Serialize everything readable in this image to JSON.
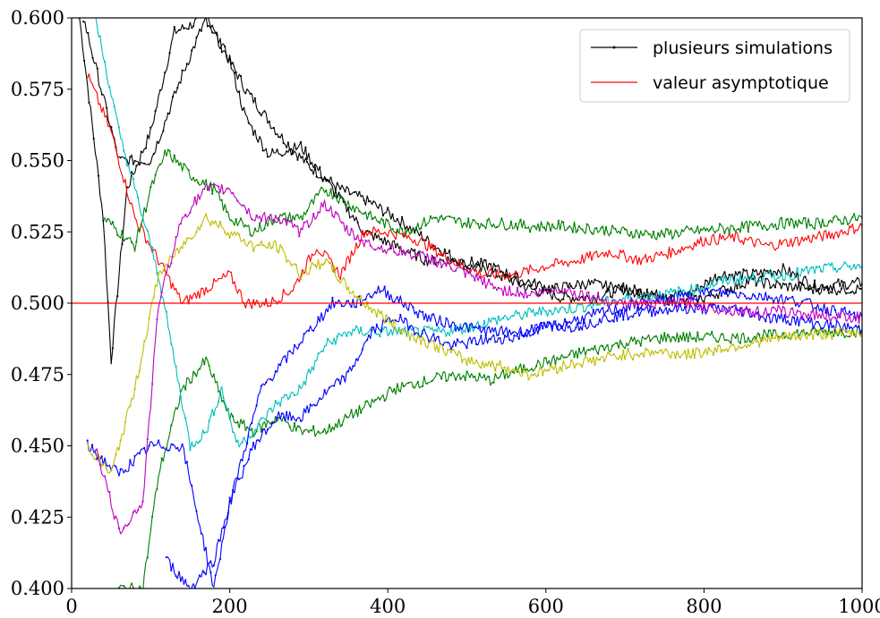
{
  "chart_data": {
    "type": "line",
    "xlim": [
      0,
      1000
    ],
    "ylim": [
      0.4,
      0.6
    ],
    "x_ticks": [
      0,
      200,
      400,
      600,
      800,
      1000
    ],
    "y_ticks": [
      0.4,
      0.425,
      0.45,
      0.475,
      0.5,
      0.525,
      0.55,
      0.575,
      0.6
    ],
    "x_tick_labels": [
      "0",
      "200",
      "400",
      "600",
      "800",
      "1000"
    ],
    "y_tick_labels": [
      "0.400",
      "0.425",
      "0.450",
      "0.475",
      "0.500",
      "0.525",
      "0.550",
      "0.575",
      "0.600"
    ],
    "grid": false,
    "legend": {
      "placement": "top-right",
      "entries": [
        {
          "label": "plusieurs simulations",
          "color": "#000000",
          "marker": true
        },
        {
          "label": "valeur asymptotique",
          "color": "#ff0000",
          "marker": false
        }
      ]
    },
    "asymptote": {
      "y": 0.5,
      "color": "#ff0000"
    },
    "series": [
      {
        "color": "#000000",
        "marker": true,
        "points": [
          [
            10,
            0.6
          ],
          [
            40,
            0.53
          ],
          [
            50,
            0.48
          ],
          [
            70,
            0.54
          ],
          [
            100,
            0.56
          ],
          [
            130,
            0.595
          ],
          [
            170,
            0.6
          ],
          [
            200,
            0.585
          ],
          [
            220,
            0.575
          ],
          [
            260,
            0.56
          ],
          [
            300,
            0.548
          ],
          [
            340,
            0.54
          ],
          [
            380,
            0.535
          ],
          [
            420,
            0.528
          ],
          [
            460,
            0.52
          ],
          [
            500,
            0.513
          ],
          [
            540,
            0.51
          ],
          [
            580,
            0.505
          ],
          [
            620,
            0.502
          ],
          [
            660,
            0.502
          ],
          [
            700,
            0.505
          ],
          [
            740,
            0.503
          ],
          [
            780,
            0.503
          ],
          [
            820,
            0.51
          ],
          [
            860,
            0.51
          ],
          [
            900,
            0.512
          ],
          [
            940,
            0.506
          ],
          [
            1000,
            0.507
          ]
        ]
      },
      {
        "color": "#000000",
        "marker": true,
        "points": [
          [
            15,
            0.6
          ],
          [
            60,
            0.55
          ],
          [
            100,
            0.55
          ],
          [
            140,
            0.58
          ],
          [
            170,
            0.6
          ],
          [
            200,
            0.585
          ],
          [
            220,
            0.565
          ],
          [
            250,
            0.552
          ],
          [
            290,
            0.555
          ],
          [
            330,
            0.54
          ],
          [
            370,
            0.525
          ],
          [
            410,
            0.52
          ],
          [
            450,
            0.515
          ],
          [
            490,
            0.515
          ],
          [
            530,
            0.513
          ],
          [
            570,
            0.508
          ],
          [
            610,
            0.505
          ],
          [
            650,
            0.507
          ],
          [
            700,
            0.505
          ],
          [
            740,
            0.502
          ],
          [
            780,
            0.5
          ],
          [
            820,
            0.504
          ],
          [
            860,
            0.508
          ],
          [
            900,
            0.506
          ],
          [
            940,
            0.505
          ],
          [
            1000,
            0.505
          ]
        ]
      },
      {
        "color": "#ff0000",
        "marker": false,
        "points": [
          [
            20,
            0.58
          ],
          [
            50,
            0.56
          ],
          [
            80,
            0.53
          ],
          [
            110,
            0.515
          ],
          [
            140,
            0.5
          ],
          [
            170,
            0.505
          ],
          [
            200,
            0.51
          ],
          [
            220,
            0.5
          ],
          [
            250,
            0.5
          ],
          [
            280,
            0.505
          ],
          [
            310,
            0.52
          ],
          [
            340,
            0.51
          ],
          [
            370,
            0.525
          ],
          [
            400,
            0.525
          ],
          [
            440,
            0.522
          ],
          [
            480,
            0.515
          ],
          [
            520,
            0.51
          ],
          [
            560,
            0.51
          ],
          [
            600,
            0.513
          ],
          [
            640,
            0.515
          ],
          [
            680,
            0.518
          ],
          [
            720,
            0.515
          ],
          [
            760,
            0.518
          ],
          [
            800,
            0.522
          ],
          [
            840,
            0.523
          ],
          [
            880,
            0.52
          ],
          [
            920,
            0.522
          ],
          [
            960,
            0.524
          ],
          [
            1000,
            0.527
          ]
        ]
      },
      {
        "color": "#008000",
        "marker": true,
        "points": [
          [
            40,
            0.53
          ],
          [
            80,
            0.52
          ],
          [
            100,
            0.54
          ],
          [
            120,
            0.553
          ],
          [
            150,
            0.545
          ],
          [
            180,
            0.54
          ],
          [
            200,
            0.53
          ],
          [
            230,
            0.525
          ],
          [
            260,
            0.53
          ],
          [
            290,
            0.53
          ],
          [
            320,
            0.54
          ],
          [
            350,
            0.535
          ],
          [
            380,
            0.53
          ],
          [
            420,
            0.525
          ],
          [
            460,
            0.53
          ],
          [
            500,
            0.528
          ],
          [
            540,
            0.528
          ],
          [
            580,
            0.527
          ],
          [
            620,
            0.527
          ],
          [
            660,
            0.526
          ],
          [
            700,
            0.525
          ],
          [
            740,
            0.524
          ],
          [
            780,
            0.525
          ],
          [
            820,
            0.526
          ],
          [
            860,
            0.527
          ],
          [
            900,
            0.528
          ],
          [
            940,
            0.528
          ],
          [
            1000,
            0.53
          ]
        ]
      },
      {
        "color": "#008000",
        "marker": true,
        "points": [
          [
            60,
            0.4
          ],
          [
            90,
            0.4
          ],
          [
            110,
            0.44
          ],
          [
            140,
            0.47
          ],
          [
            170,
            0.48
          ],
          [
            200,
            0.46
          ],
          [
            230,
            0.455
          ],
          [
            260,
            0.46
          ],
          [
            290,
            0.455
          ],
          [
            320,
            0.455
          ],
          [
            350,
            0.46
          ],
          [
            380,
            0.465
          ],
          [
            410,
            0.47
          ],
          [
            450,
            0.473
          ],
          [
            490,
            0.475
          ],
          [
            530,
            0.473
          ],
          [
            570,
            0.477
          ],
          [
            610,
            0.48
          ],
          [
            650,
            0.483
          ],
          [
            700,
            0.486
          ],
          [
            750,
            0.488
          ],
          [
            800,
            0.488
          ],
          [
            850,
            0.488
          ],
          [
            900,
            0.489
          ],
          [
            950,
            0.49
          ],
          [
            1000,
            0.49
          ]
        ]
      },
      {
        "color": "#00bfbf",
        "marker": true,
        "points": [
          [
            30,
            0.6
          ],
          [
            60,
            0.56
          ],
          [
            90,
            0.53
          ],
          [
            110,
            0.51
          ],
          [
            130,
            0.48
          ],
          [
            150,
            0.45
          ],
          [
            170,
            0.455
          ],
          [
            190,
            0.47
          ],
          [
            210,
            0.45
          ],
          [
            230,
            0.455
          ],
          [
            260,
            0.465
          ],
          [
            290,
            0.47
          ],
          [
            320,
            0.485
          ],
          [
            350,
            0.49
          ],
          [
            390,
            0.49
          ],
          [
            430,
            0.49
          ],
          [
            470,
            0.49
          ],
          [
            510,
            0.492
          ],
          [
            550,
            0.495
          ],
          [
            590,
            0.497
          ],
          [
            630,
            0.498
          ],
          [
            670,
            0.5
          ],
          [
            710,
            0.502
          ],
          [
            750,
            0.503
          ],
          [
            790,
            0.505
          ],
          [
            830,
            0.508
          ],
          [
            870,
            0.509
          ],
          [
            910,
            0.51
          ],
          [
            950,
            0.512
          ],
          [
            1000,
            0.513
          ]
        ]
      },
      {
        "color": "#0000ff",
        "marker": true,
        "points": [
          [
            120,
            0.41
          ],
          [
            150,
            0.4
          ],
          [
            180,
            0.41
          ],
          [
            210,
            0.44
          ],
          [
            240,
            0.47
          ],
          [
            270,
            0.48
          ],
          [
            300,
            0.49
          ],
          [
            330,
            0.5
          ],
          [
            360,
            0.5
          ],
          [
            390,
            0.505
          ],
          [
            420,
            0.5
          ],
          [
            450,
            0.495
          ],
          [
            490,
            0.492
          ],
          [
            530,
            0.49
          ],
          [
            570,
            0.49
          ],
          [
            610,
            0.492
          ],
          [
            650,
            0.495
          ],
          [
            690,
            0.498
          ],
          [
            730,
            0.5
          ],
          [
            770,
            0.502
          ],
          [
            810,
            0.504
          ],
          [
            850,
            0.503
          ],
          [
            890,
            0.502
          ],
          [
            930,
            0.5
          ],
          [
            970,
            0.497
          ],
          [
            1000,
            0.495
          ]
        ]
      },
      {
        "color": "#0000ff",
        "marker": true,
        "points": [
          [
            20,
            0.45
          ],
          [
            60,
            0.44
          ],
          [
            100,
            0.45
          ],
          [
            140,
            0.45
          ],
          [
            180,
            0.4
          ],
          [
            200,
            0.43
          ],
          [
            230,
            0.45
          ],
          [
            260,
            0.46
          ],
          [
            290,
            0.46
          ],
          [
            320,
            0.468
          ],
          [
            350,
            0.475
          ],
          [
            380,
            0.49
          ],
          [
            410,
            0.495
          ],
          [
            440,
            0.49
          ],
          [
            480,
            0.485
          ],
          [
            520,
            0.487
          ],
          [
            560,
            0.488
          ],
          [
            600,
            0.492
          ],
          [
            640,
            0.492
          ],
          [
            680,
            0.495
          ],
          [
            720,
            0.497
          ],
          [
            760,
            0.498
          ],
          [
            800,
            0.498
          ],
          [
            840,
            0.498
          ],
          [
            880,
            0.495
          ],
          [
            920,
            0.494
          ],
          [
            960,
            0.492
          ],
          [
            1000,
            0.491
          ]
        ]
      },
      {
        "color": "#bfbf00",
        "marker": true,
        "points": [
          [
            20,
            0.45
          ],
          [
            50,
            0.44
          ],
          [
            80,
            0.47
          ],
          [
            110,
            0.51
          ],
          [
            140,
            0.52
          ],
          [
            170,
            0.53
          ],
          [
            200,
            0.525
          ],
          [
            230,
            0.52
          ],
          [
            260,
            0.52
          ],
          [
            290,
            0.51
          ],
          [
            320,
            0.515
          ],
          [
            350,
            0.505
          ],
          [
            380,
            0.498
          ],
          [
            420,
            0.49
          ],
          [
            460,
            0.485
          ],
          [
            500,
            0.48
          ],
          [
            540,
            0.478
          ],
          [
            580,
            0.475
          ],
          [
            620,
            0.478
          ],
          [
            660,
            0.48
          ],
          [
            700,
            0.482
          ],
          [
            740,
            0.483
          ],
          [
            780,
            0.482
          ],
          [
            820,
            0.484
          ],
          [
            860,
            0.486
          ],
          [
            900,
            0.488
          ],
          [
            940,
            0.489
          ],
          [
            1000,
            0.49
          ]
        ]
      },
      {
        "color": "#bf00bf",
        "marker": true,
        "points": [
          [
            30,
            0.45
          ],
          [
            60,
            0.42
          ],
          [
            90,
            0.43
          ],
          [
            110,
            0.5
          ],
          [
            140,
            0.53
          ],
          [
            170,
            0.54
          ],
          [
            200,
            0.54
          ],
          [
            230,
            0.53
          ],
          [
            260,
            0.53
          ],
          [
            290,
            0.525
          ],
          [
            320,
            0.535
          ],
          [
            350,
            0.525
          ],
          [
            380,
            0.52
          ],
          [
            420,
            0.518
          ],
          [
            460,
            0.515
          ],
          [
            500,
            0.51
          ],
          [
            540,
            0.505
          ],
          [
            580,
            0.503
          ],
          [
            620,
            0.505
          ],
          [
            660,
            0.502
          ],
          [
            700,
            0.5
          ],
          [
            740,
            0.5
          ],
          [
            780,
            0.5
          ],
          [
            820,
            0.498
          ],
          [
            860,
            0.497
          ],
          [
            900,
            0.497
          ],
          [
            940,
            0.496
          ],
          [
            1000,
            0.495
          ]
        ]
      }
    ]
  }
}
